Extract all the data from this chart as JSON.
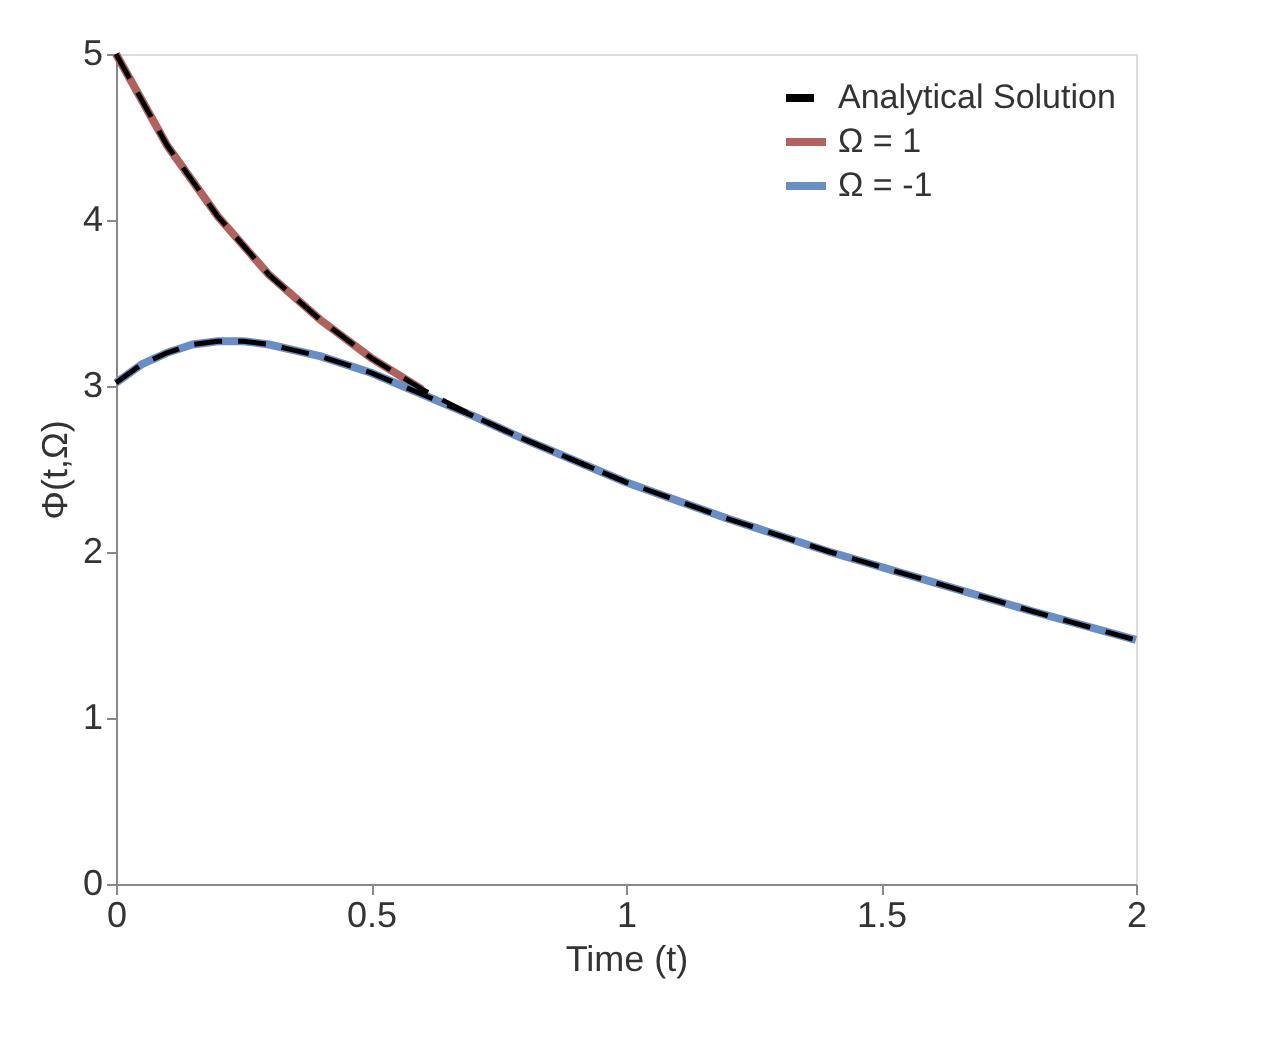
{
  "chart_data": {
    "type": "line",
    "xlabel": "Time (t)",
    "ylabel": "Φ(t,Ω)",
    "xlim": [
      0,
      2
    ],
    "xticks": [
      0,
      0.5,
      1,
      1.5,
      2
    ],
    "ylim": [
      0,
      5
    ],
    "yticks": [
      0,
      1,
      2,
      3,
      4,
      5
    ],
    "grid": false,
    "legend": "top right",
    "series": [
      {
        "name": "Analytical Solution",
        "color": "#000000",
        "line_style": "dashed",
        "x": [
          0,
          0.1,
          0.2,
          0.3,
          0.4,
          0.5,
          0.6,
          0.7,
          0.8,
          0.9,
          1.0,
          1.2,
          1.4,
          1.6,
          1.8,
          2.0
        ],
        "values": [
          5.0,
          4.45,
          4.02,
          3.67,
          3.4,
          3.17,
          2.98,
          2.82,
          2.68,
          2.55,
          2.42,
          2.2,
          2.0,
          1.82,
          1.64,
          1.47
        ]
      },
      {
        "name": "Ω = 1",
        "color": "#b0625e",
        "line_style": "solid",
        "x": [
          0,
          0.1,
          0.2,
          0.3,
          0.4,
          0.5,
          0.6
        ],
        "values": [
          5.0,
          4.45,
          4.02,
          3.67,
          3.4,
          3.17,
          2.98
        ]
      },
      {
        "name": "Ω = -1",
        "color": "#6a8dc4",
        "line_style": "solid",
        "x": [
          0,
          0.05,
          0.1,
          0.15,
          0.2,
          0.25,
          0.3,
          0.4,
          0.5,
          0.6,
          0.7,
          0.8,
          0.9,
          1.0,
          1.2,
          1.4,
          1.6,
          1.8,
          2.0
        ],
        "values": [
          3.02,
          3.13,
          3.2,
          3.25,
          3.27,
          3.27,
          3.25,
          3.18,
          3.08,
          2.95,
          2.82,
          2.68,
          2.55,
          2.42,
          2.2,
          2.0,
          1.82,
          1.64,
          1.47
        ]
      },
      {
        "color": "#000000",
        "line_style": "dashed",
        "x": [
          0,
          0.05,
          0.1,
          0.15,
          0.2,
          0.25,
          0.3,
          0.4,
          0.5,
          0.6,
          0.7,
          0.8,
          0.9,
          1.0
        ],
        "values": [
          3.02,
          3.13,
          3.2,
          3.25,
          3.27,
          3.27,
          3.25,
          3.18,
          3.08,
          2.95,
          2.82,
          2.68,
          2.55,
          2.42
        ]
      }
    ]
  }
}
